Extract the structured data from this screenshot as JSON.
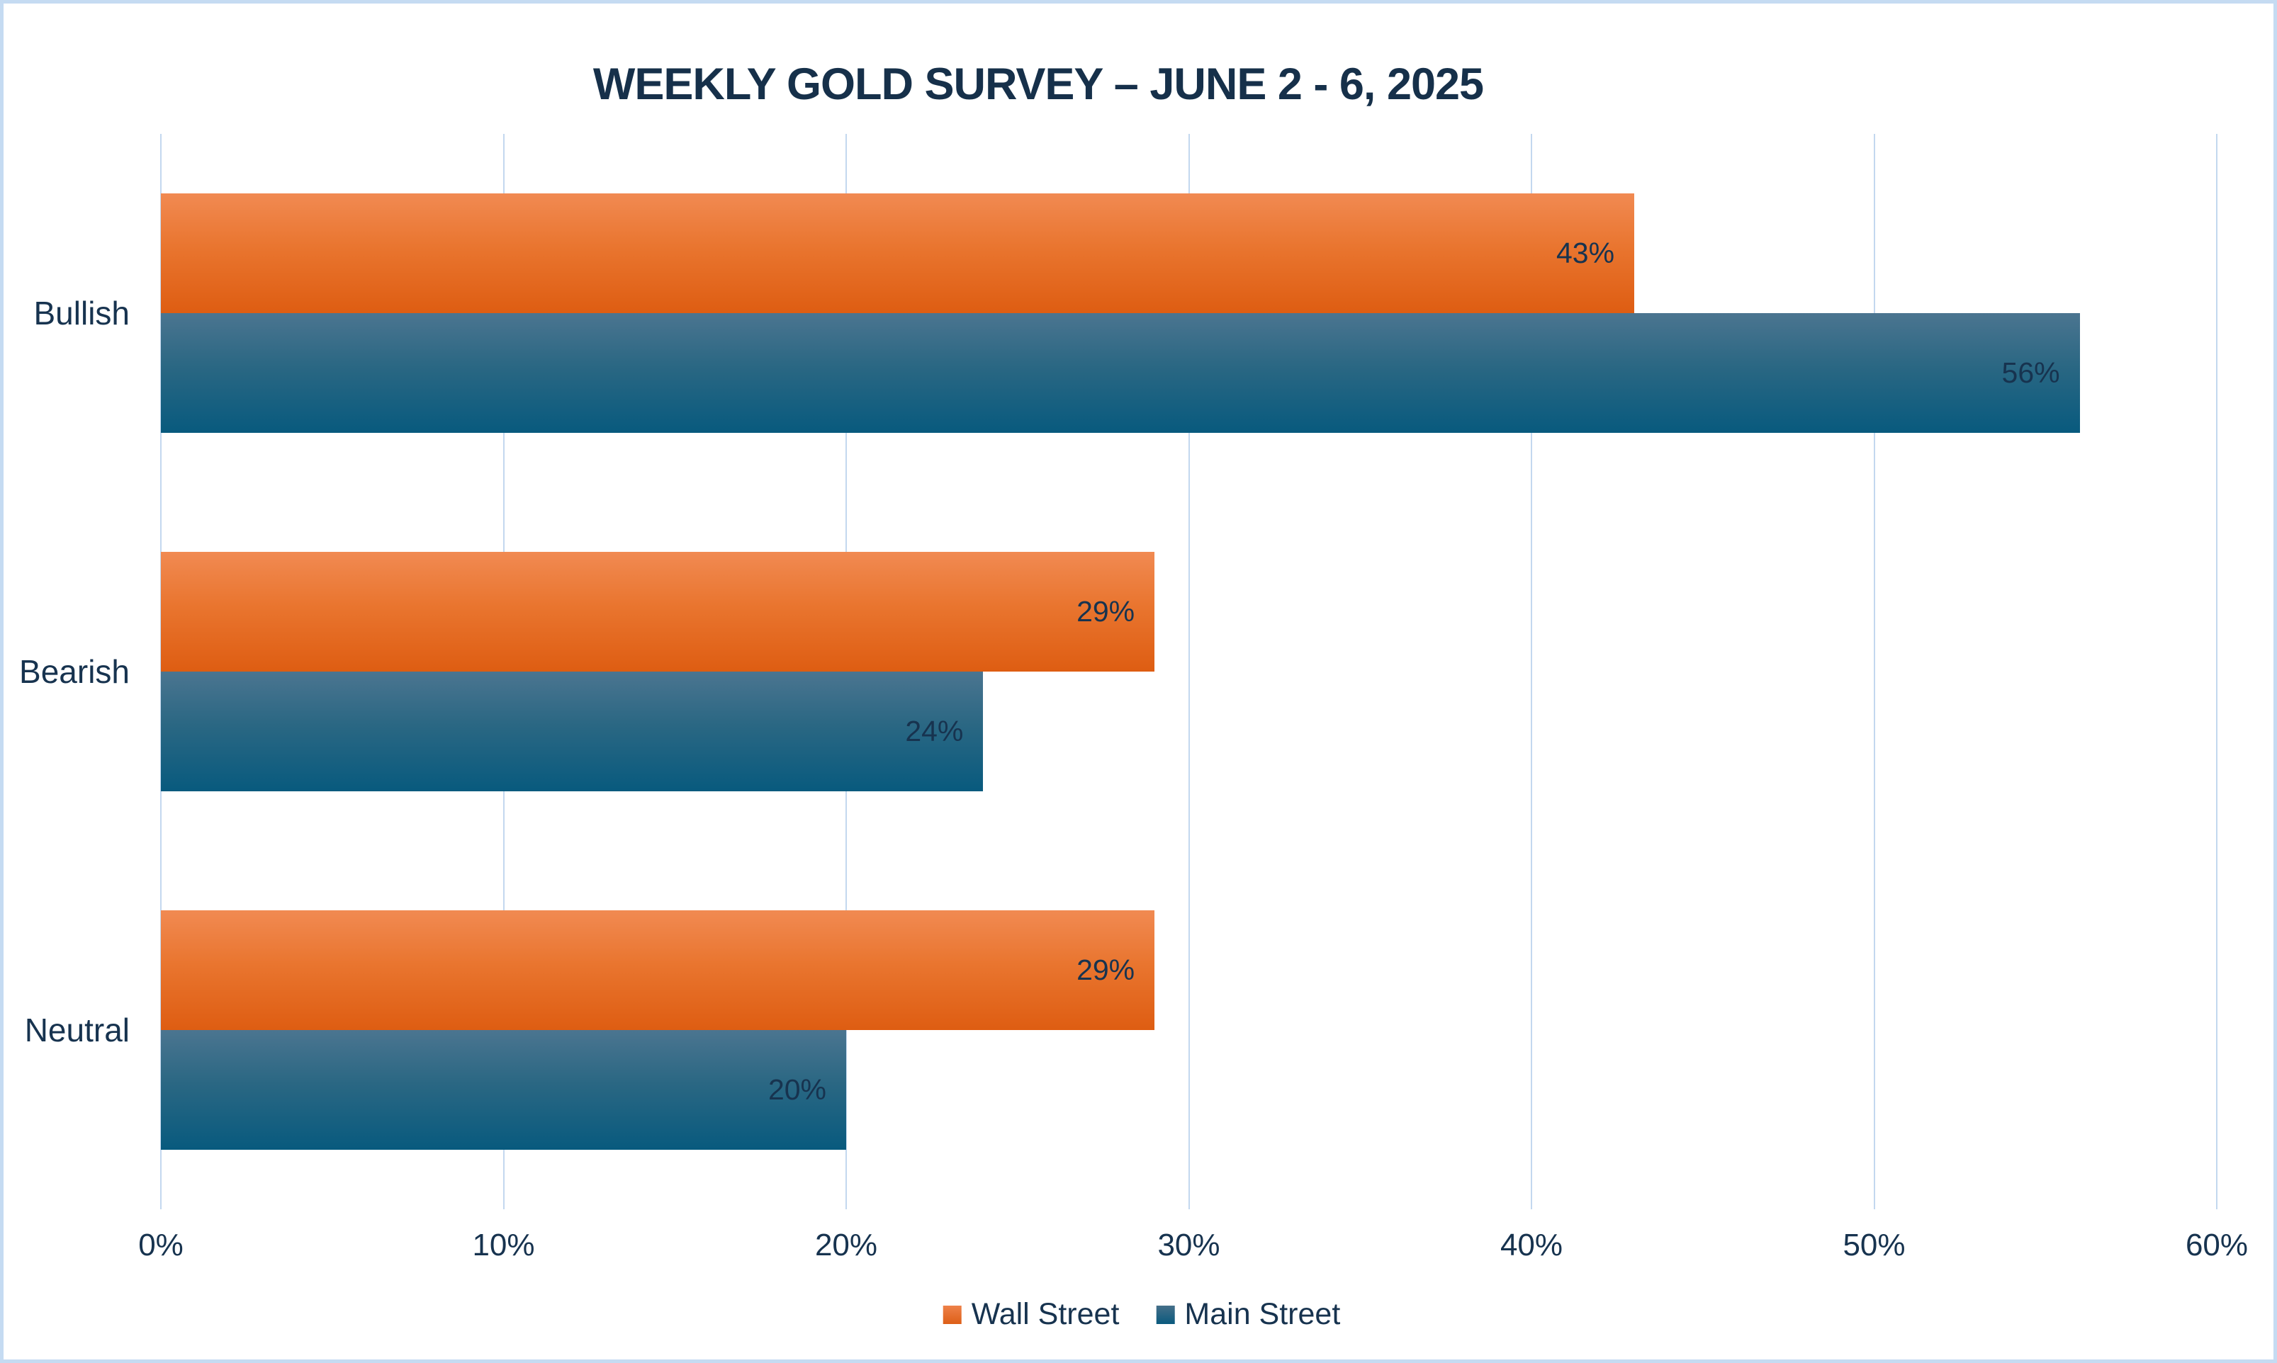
{
  "chart_data": {
    "type": "bar",
    "orientation": "horizontal",
    "title": "WEEKLY GOLD SURVEY – JUNE 2 - 6, 2025",
    "categories": [
      "Bullish",
      "Bearish",
      "Neutral"
    ],
    "series": [
      {
        "name": "Wall Street",
        "values": [
          43,
          29,
          29
        ]
      },
      {
        "name": "Main Street",
        "values": [
          56,
          24,
          20
        ]
      }
    ],
    "data_labels": [
      [
        "43%",
        "29%",
        "29%"
      ],
      [
        "56%",
        "24%",
        "20%"
      ]
    ],
    "xlabel": "",
    "ylabel": "",
    "x_axis": {
      "min": 0,
      "max": 60,
      "tick_step": 10,
      "tick_labels": [
        "0%",
        "10%",
        "20%",
        "30%",
        "40%",
        "50%",
        "60%"
      ]
    },
    "grid": true,
    "legend_position": "bottom",
    "legend_entries": [
      "Wall Street",
      "Main Street"
    ]
  },
  "colors": {
    "wall_street_top": "#F18A52",
    "wall_street_bottom": "#DE5D12",
    "main_street_top": "#4B7590",
    "main_street_bottom": "#085A7E",
    "text_navy": "#17334F",
    "gridline": "#C3D8EF",
    "canvas_border": "#C5DBF2",
    "background": "#FFFFFF"
  }
}
